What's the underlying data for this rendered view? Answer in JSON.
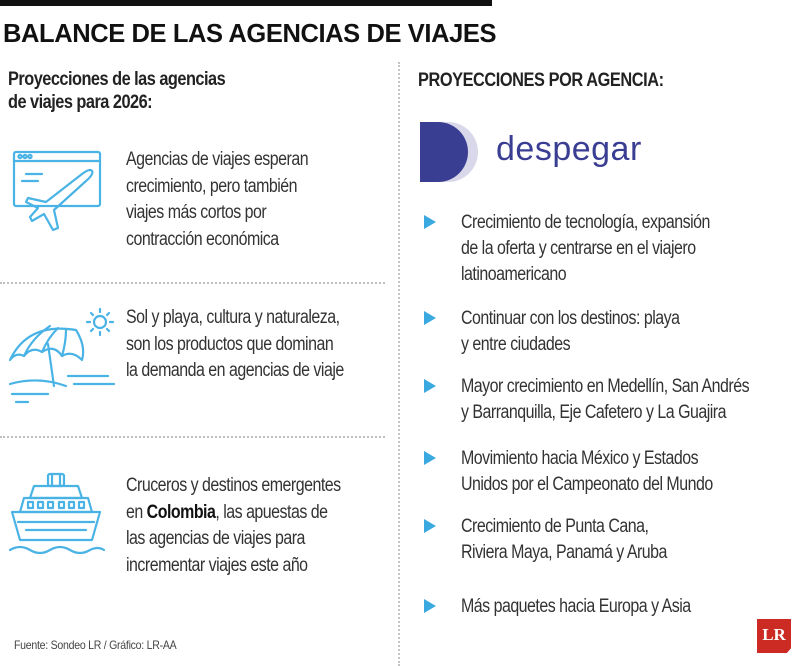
{
  "title": "BALANCE DE LAS AGENCIAS DE VIAJES",
  "left": {
    "heading_line1": "Proyecciones de las agencias",
    "heading_line2": "de viajes para 2026:",
    "items": [
      {
        "icon": "web-plane-icon",
        "lines": [
          "Agencias de viajes esperan",
          "crecimiento, pero también",
          "viajes más cortos por",
          "contracción económica"
        ]
      },
      {
        "icon": "beach-umbrella-icon",
        "lines": [
          "Sol y playa, cultura y naturaleza,",
          "son los productos que dominan",
          "la demanda en agencias de viaje"
        ]
      },
      {
        "icon": "cruise-ship-icon",
        "lines": [
          "Cruceros y destinos emergentes",
          "las apuestas de",
          "las agencias de viajes para",
          "incrementar viajes este año"
        ],
        "line2_prefix": "en ",
        "bold_word": "Colombia",
        "bold_suffix": ","
      }
    ],
    "source": "Fuente: Sondeo LR / Gráfico: LR-AA"
  },
  "right": {
    "heading": "PROYECCIONES POR AGENCIA:",
    "brand": "despegar",
    "bullets": [
      [
        "Crecimiento de tecnología, expansión",
        "de la oferta y centrarse en el viajero",
        "latinoamericano"
      ],
      [
        "Continuar con los destinos: playa",
        "y entre ciudades"
      ],
      [
        "Mayor crecimiento en Medellín, San Andrés",
        "y Barranquilla, Eje Cafetero y La Guajira"
      ],
      [
        "Movimiento hacia México y Estados",
        "Unidos por el Campeonato del Mundo"
      ],
      [
        "Crecimiento de Punta Cana,",
        "Riviera Maya, Panamá y Aruba"
      ],
      [
        "Más paquetes hacia Europa y Asia"
      ]
    ]
  },
  "logo_text": "LR",
  "colors": {
    "accent_blue": "#3aa9e0",
    "brand_navy": "#3a3e93",
    "brand_light": "#d9d8ea",
    "logo_red": "#cc2b24"
  }
}
